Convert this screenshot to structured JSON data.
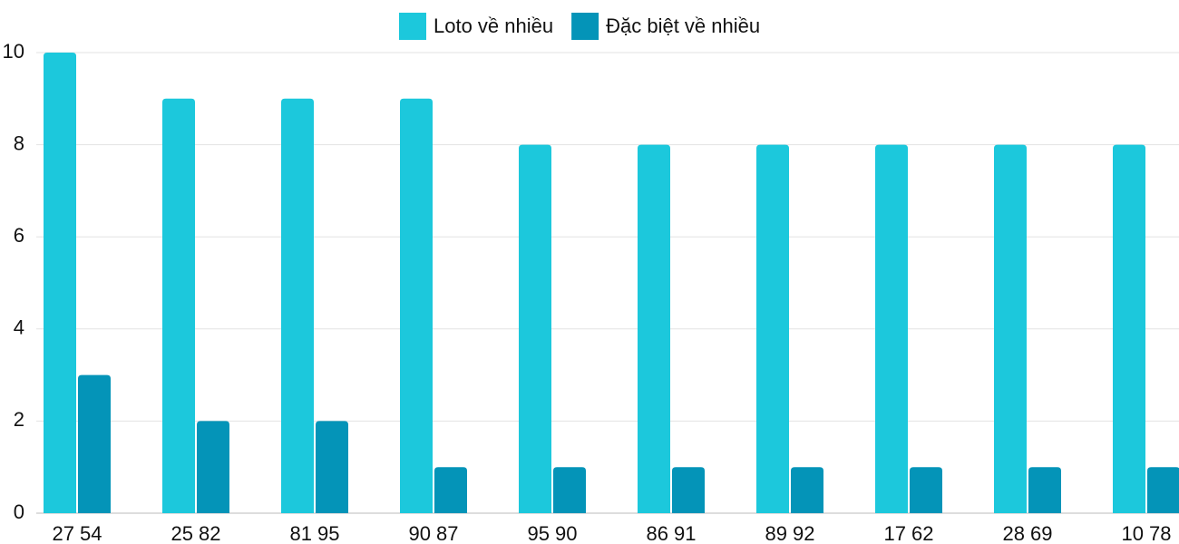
{
  "chart_data": {
    "type": "bar",
    "categories": [
      "27 54",
      "25 82",
      "81 95",
      "90 87",
      "95 90",
      "86 91",
      "89 92",
      "17 62",
      "28 69",
      "10 78"
    ],
    "series": [
      {
        "name": "Loto về nhiều",
        "color": "#1cc8dc",
        "values": [
          10,
          9,
          9,
          9,
          8,
          8,
          8,
          8,
          8,
          8
        ]
      },
      {
        "name": "Đặc biệt về nhiều",
        "color": "#0494b8",
        "values": [
          3,
          2,
          2,
          1,
          1,
          1,
          1,
          1,
          1,
          1
        ]
      }
    ],
    "ylim": [
      0,
      10
    ],
    "yticks": [
      0,
      2,
      4,
      6,
      8,
      10
    ],
    "grid": true,
    "legend": "top"
  }
}
